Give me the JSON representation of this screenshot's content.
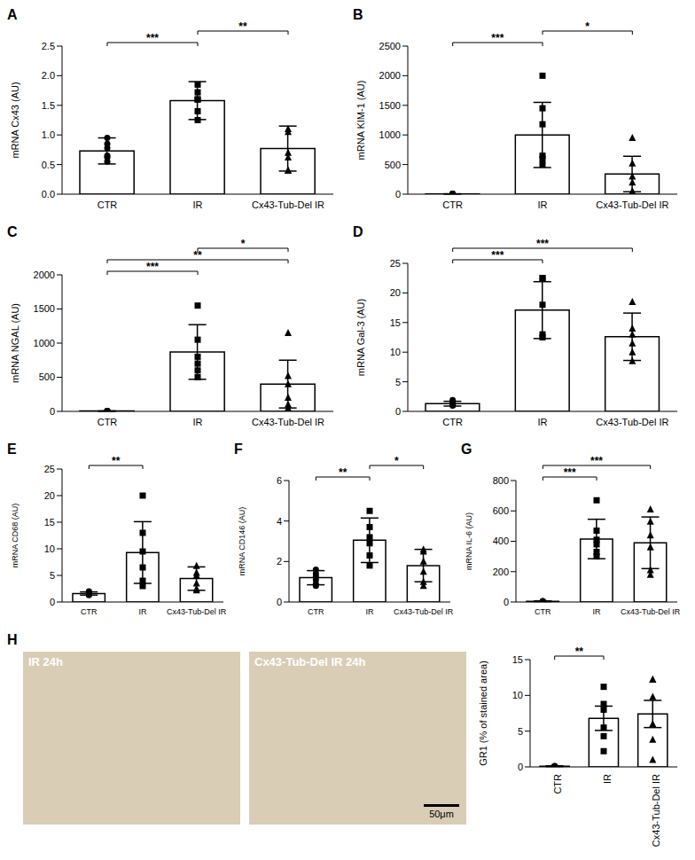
{
  "chart_data": [
    {
      "type": "bar",
      "title": "A",
      "y_label": "mRNA Cx43 (AU)",
      "categories": [
        "CTR",
        "IR",
        "Cx43-Tub-Del IR"
      ],
      "values": [
        0.73,
        1.58,
        0.77
      ],
      "error": [
        0.22,
        0.32,
        0.38
      ],
      "points": [
        [
          0.95,
          0.85,
          0.78,
          0.65,
          0.62,
          0.55
        ],
        [
          1.85,
          1.72,
          1.6,
          1.6,
          1.4,
          1.25
        ],
        [
          1.1,
          1.05,
          0.7,
          0.62,
          0.4,
          0.4
        ]
      ],
      "annotations": [
        {
          "from": "CTR",
          "to": "IR",
          "label": "***"
        },
        {
          "from": "IR",
          "to": "Cx43-Tub-Del IR",
          "label": "**"
        }
      ],
      "ylim": [
        0,
        2.5
      ],
      "yticks": [
        {
          "value": 0,
          "label": "0.0"
        },
        0.5,
        {
          "value": 1,
          "label": "1.0"
        },
        1.5,
        {
          "value": 2,
          "label": "2.0"
        },
        2.5
      ],
      "color": "#000000"
    },
    {
      "type": "bar",
      "title": "B",
      "y_label": "mRNA KIM-1 (AU)",
      "categories": [
        "CTR",
        "IR",
        "Cx43-Tub-Del IR"
      ],
      "values": [
        5,
        1000,
        340
      ],
      "error": [
        2,
        550,
        300
      ],
      "points": [
        [
          5,
          5,
          5,
          5,
          5,
          5
        ],
        [
          2000,
          1450,
          1180,
          650,
          600,
          500
        ],
        [
          950,
          520,
          300,
          200,
          50,
          40
        ]
      ],
      "annotations": [
        {
          "from": "CTR",
          "to": "IR",
          "label": "***"
        },
        {
          "from": "IR",
          "to": "Cx43-Tub-Del IR",
          "label": "*"
        }
      ],
      "ylim": [
        0,
        2500
      ],
      "yticks": [
        0,
        500,
        1000,
        1500,
        2000,
        2500
      ],
      "color": "#000000"
    },
    {
      "type": "bar",
      "title": "C",
      "y_label": "mRNA NGAL (AU)",
      "categories": [
        "CTR",
        "IR",
        "Cx43-Tub-Del IR"
      ],
      "values": [
        5,
        870,
        400
      ],
      "error": [
        2,
        400,
        350
      ],
      "points": [
        [
          5,
          5,
          5,
          5,
          5,
          5
        ],
        [
          1550,
          1050,
          800,
          700,
          600,
          500
        ],
        [
          1150,
          520,
          400,
          200,
          100,
          50
        ]
      ],
      "annotations": [
        {
          "from": "CTR",
          "to": "IR",
          "label": "***"
        },
        {
          "from": "CTR",
          "to": "Cx43-Tub-Del IR",
          "label": "**"
        },
        {
          "from": "IR",
          "to": "Cx43-Tub-Del IR",
          "label": "*"
        }
      ],
      "ylim": [
        0,
        2000
      ],
      "yticks": [
        0,
        500,
        1000,
        1500,
        2000
      ],
      "color": "#000000"
    },
    {
      "type": "bar",
      "title": "D",
      "y_label": "mRNA Gal-3 (AU)",
      "categories": [
        "CTR",
        "IR",
        "Cx43-Tub-Del IR"
      ],
      "values": [
        1.3,
        17.1,
        12.6
      ],
      "error": [
        0.4,
        4.8,
        4
      ],
      "points": [
        [
          1.9,
          1.5,
          1.3,
          1.1,
          1,
          1
        ],
        [
          22.5,
          22.5,
          18,
          13,
          12.5
        ],
        [
          18.5,
          14,
          13,
          11.5,
          10,
          8.5
        ]
      ],
      "annotations": [
        {
          "from": "CTR",
          "to": "IR",
          "label": "***"
        },
        {
          "from": "CTR",
          "to": "Cx43-Tub-Del IR",
          "label": "***"
        }
      ],
      "ylim": [
        0,
        25
      ],
      "yticks": [
        0,
        5,
        10,
        15,
        20,
        25
      ],
      "color": "#000000"
    },
    {
      "type": "bar",
      "title": "E",
      "y_label": "mRNA CD68 (AU)",
      "categories": [
        "CTR",
        "IR",
        "Cx43-Tub-Del IR"
      ],
      "values": [
        1.6,
        9.3,
        4.4
      ],
      "error": [
        0.3,
        5.8,
        2.2
      ],
      "points": [
        [
          2,
          1.8,
          1.6,
          1.5,
          1.4,
          1.3
        ],
        [
          20,
          13,
          9.5,
          6.5,
          4,
          3
        ],
        [
          6.8,
          5.5,
          5,
          3.5,
          2.5,
          2.2
        ]
      ],
      "annotations": [
        {
          "from": "CTR",
          "to": "IR",
          "label": "**"
        }
      ],
      "ylim": [
        0,
        25
      ],
      "yticks": [
        0,
        5,
        10,
        15,
        20,
        25
      ],
      "color": "#000000"
    },
    {
      "type": "bar",
      "title": "F",
      "y_label": "mRNA CD146 (AU)",
      "categories": [
        "CTR",
        "IR",
        "Cx43-Tub-Del IR"
      ],
      "values": [
        1.2,
        3.05,
        1.8
      ],
      "error": [
        0.35,
        1.1,
        0.8
      ],
      "points": [
        [
          1.6,
          1.4,
          1.25,
          1.1,
          0.9,
          0.8
        ],
        [
          4.5,
          3.7,
          3.2,
          2.9,
          2.3,
          1.8
        ],
        [
          2.6,
          2.5,
          2,
          1.5,
          1,
          0.8
        ]
      ],
      "annotations": [
        {
          "from": "CTR",
          "to": "IR",
          "label": "**"
        },
        {
          "from": "IR",
          "to": "Cx43-Tub-Del IR",
          "label": "*"
        }
      ],
      "ylim": [
        0,
        6
      ],
      "yticks": [
        0,
        2,
        4,
        6
      ],
      "color": "#000000"
    },
    {
      "type": "bar",
      "title": "G",
      "y_label": "mRNA IL-6 (AU)",
      "categories": [
        "CTR",
        "IR",
        "Cx43-Tub-Del IR"
      ],
      "values": [
        5,
        415,
        390
      ],
      "error": [
        2,
        130,
        170
      ],
      "points": [
        [
          5,
          5,
          5,
          5,
          5,
          5
        ],
        [
          670,
          470,
          410,
          380,
          330,
          300
        ],
        [
          610,
          530,
          440,
          360,
          210,
          180
        ]
      ],
      "annotations": [
        {
          "from": "CTR",
          "to": "IR",
          "label": "***"
        },
        {
          "from": "CTR",
          "to": "Cx43-Tub-Del IR",
          "label": "***"
        }
      ],
      "ylim": [
        0,
        800
      ],
      "yticks": [
        0,
        200,
        400,
        600,
        800
      ],
      "color": "#000000"
    },
    {
      "type": "bar",
      "title": "H",
      "y_label": "GR1 (% of stained area)",
      "categories": [
        "CTR",
        "IR",
        "Cx43-Tub-Del IR"
      ],
      "values": [
        0.1,
        6.8,
        7.4
      ],
      "error": [
        0.05,
        1.7,
        1.9
      ],
      "points": [
        [
          0.1,
          0.1,
          0.1,
          0.1,
          0.1
        ],
        [
          11.2,
          8.8,
          8,
          5.5,
          4.3,
          2.2
        ],
        [
          12.2,
          12.2,
          9.8,
          6,
          3.8,
          1
        ]
      ],
      "annotations": [
        {
          "from": "CTR",
          "to": "IR",
          "label": "**"
        }
      ],
      "ylim": [
        0,
        15
      ],
      "yticks": [
        0,
        5,
        10,
        15
      ],
      "color": "#000000",
      "images": [
        {
          "label": "IR 24h"
        },
        {
          "label": "Cx43-Tub-Del IR 24h",
          "scale_bar": "50μm"
        }
      ]
    }
  ]
}
